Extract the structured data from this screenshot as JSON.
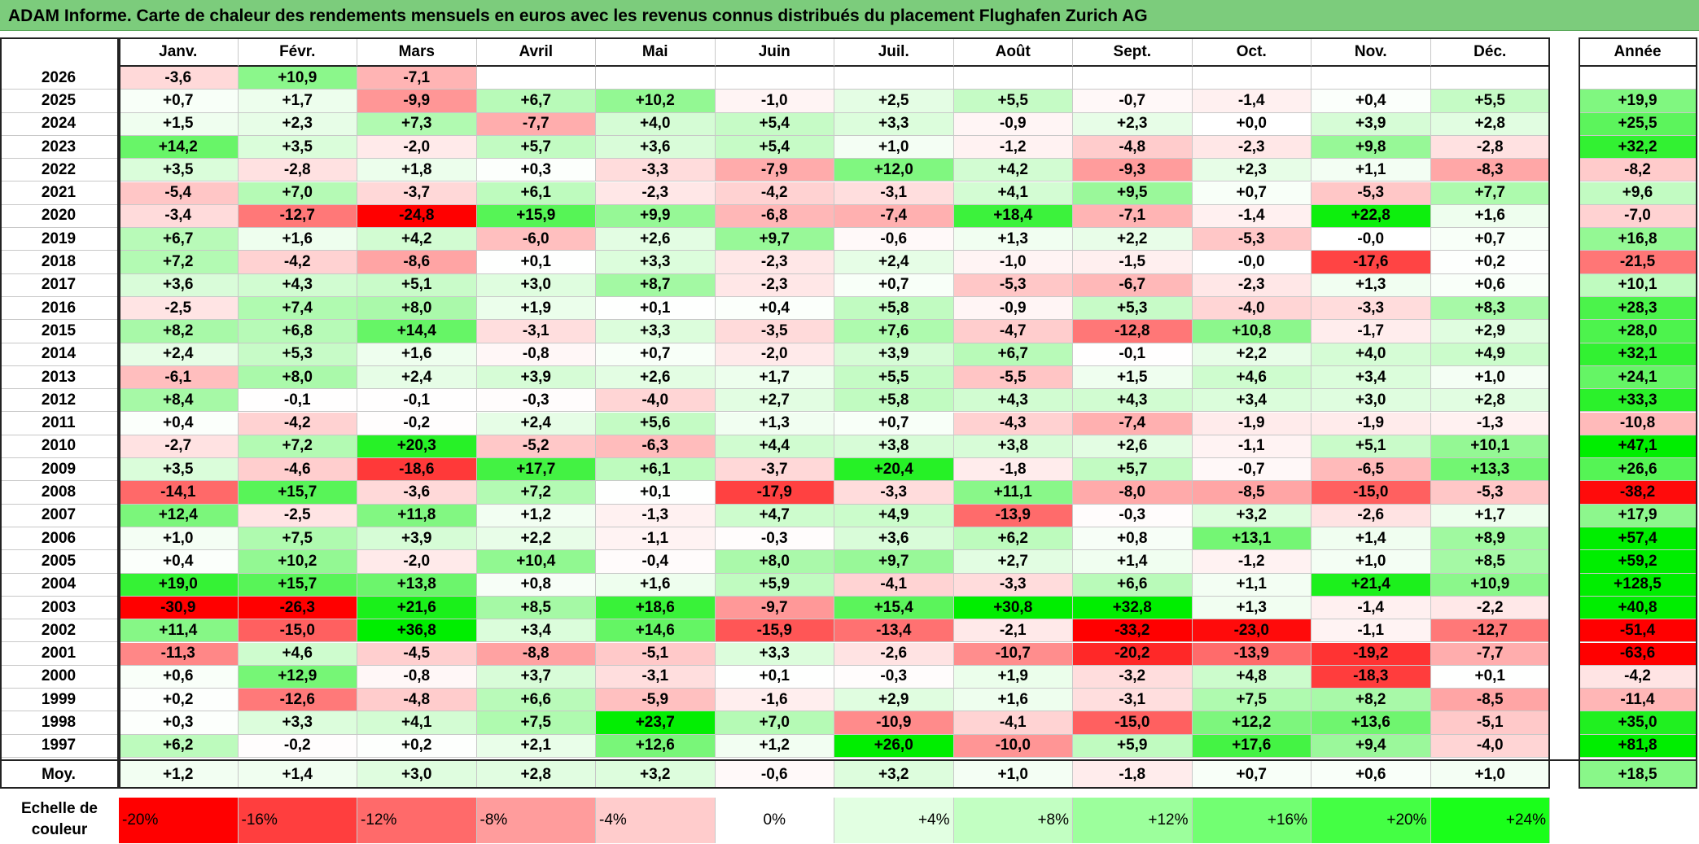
{
  "title": "ADAM Informe. Carte de chaleur des rendements mensuels en euros avec les revenus connus distribués du placement Flughafen Zurich AG",
  "chart_data": {
    "type": "heatmap",
    "title": "ADAM Informe. Carte de chaleur des rendements mensuels en euros avec les revenus connus distribués du placement Flughafen Zurich AG",
    "months": [
      "Janv.",
      "Févr.",
      "Mars",
      "Avril",
      "Mai",
      "Juin",
      "Juil.",
      "Août",
      "Sept.",
      "Oct.",
      "Nov.",
      "Déc."
    ],
    "year_header": "Année",
    "rows": [
      {
        "year": "2026",
        "values": [
          "-3,6",
          "+10,9",
          "-7,1",
          "",
          "",
          "",
          "",
          "",
          "",
          "",
          "",
          ""
        ],
        "annual": ""
      },
      {
        "year": "2025",
        "values": [
          "+0,7",
          "+1,7",
          "-9,9",
          "+6,7",
          "+10,2",
          "-1,0",
          "+2,5",
          "+5,5",
          "-0,7",
          "-1,4",
          "+0,4",
          "+5,5"
        ],
        "annual": "+19,9"
      },
      {
        "year": "2024",
        "values": [
          "+1,5",
          "+2,3",
          "+7,3",
          "-7,7",
          "+4,0",
          "+5,4",
          "+3,3",
          "-0,9",
          "+2,3",
          "+0,0",
          "+3,9",
          "+2,8"
        ],
        "annual": "+25,5"
      },
      {
        "year": "2023",
        "values": [
          "+14,2",
          "+3,5",
          "-2,0",
          "+5,7",
          "+3,6",
          "+5,4",
          "+1,0",
          "-1,2",
          "-4,8",
          "-2,3",
          "+9,8",
          "-2,8"
        ],
        "annual": "+32,2"
      },
      {
        "year": "2022",
        "values": [
          "+3,5",
          "-2,8",
          "+1,8",
          "+0,3",
          "-3,3",
          "-7,9",
          "+12,0",
          "+4,2",
          "-9,3",
          "+2,3",
          "+1,1",
          "-8,3"
        ],
        "annual": "-8,2"
      },
      {
        "year": "2021",
        "values": [
          "-5,4",
          "+7,0",
          "-3,7",
          "+6,1",
          "-2,3",
          "-4,2",
          "-3,1",
          "+4,1",
          "+9,5",
          "+0,7",
          "-5,3",
          "+7,7"
        ],
        "annual": "+9,6"
      },
      {
        "year": "2020",
        "values": [
          "-3,4",
          "-12,7",
          "-24,8",
          "+15,9",
          "+9,9",
          "-6,8",
          "-7,4",
          "+18,4",
          "-7,1",
          "-1,4",
          "+22,8",
          "+1,6"
        ],
        "annual": "-7,0"
      },
      {
        "year": "2019",
        "values": [
          "+6,7",
          "+1,6",
          "+4,2",
          "-6,0",
          "+2,6",
          "+9,7",
          "-0,6",
          "+1,3",
          "+2,2",
          "-5,3",
          "-0,0",
          "+0,7"
        ],
        "annual": "+16,8"
      },
      {
        "year": "2018",
        "values": [
          "+7,2",
          "-4,2",
          "-8,6",
          "+0,1",
          "+3,3",
          "-2,3",
          "+2,4",
          "-1,0",
          "-1,5",
          "-0,0",
          "-17,6",
          "+0,2"
        ],
        "annual": "-21,5"
      },
      {
        "year": "2017",
        "values": [
          "+3,6",
          "+4,3",
          "+5,1",
          "+3,0",
          "+8,7",
          "-2,3",
          "+0,7",
          "-5,3",
          "-6,7",
          "-2,3",
          "+1,3",
          "+0,6"
        ],
        "annual": "+10,1"
      },
      {
        "year": "2016",
        "values": [
          "-2,5",
          "+7,4",
          "+8,0",
          "+1,9",
          "+0,1",
          "+0,4",
          "+5,8",
          "-0,9",
          "+5,3",
          "-4,0",
          "-3,3",
          "+8,3"
        ],
        "annual": "+28,3"
      },
      {
        "year": "2015",
        "values": [
          "+8,2",
          "+6,8",
          "+14,4",
          "-3,1",
          "+3,3",
          "-3,5",
          "+7,6",
          "-4,7",
          "-12,8",
          "+10,8",
          "-1,7",
          "+2,9"
        ],
        "annual": "+28,0"
      },
      {
        "year": "2014",
        "values": [
          "+2,4",
          "+5,3",
          "+1,6",
          "-0,8",
          "+0,7",
          "-2,0",
          "+3,9",
          "+6,7",
          "-0,1",
          "+2,2",
          "+4,0",
          "+4,9"
        ],
        "annual": "+32,1"
      },
      {
        "year": "2013",
        "values": [
          "-6,1",
          "+8,0",
          "+2,4",
          "+3,9",
          "+2,6",
          "+1,7",
          "+5,5",
          "-5,5",
          "+1,5",
          "+4,6",
          "+3,4",
          "+1,0"
        ],
        "annual": "+24,1"
      },
      {
        "year": "2012",
        "values": [
          "+8,4",
          "-0,1",
          "-0,1",
          "-0,3",
          "-4,0",
          "+2,7",
          "+5,8",
          "+4,3",
          "+4,3",
          "+3,4",
          "+3,0",
          "+2,8"
        ],
        "annual": "+33,3"
      },
      {
        "year": "2011",
        "values": [
          "+0,4",
          "-4,2",
          "-0,2",
          "+2,4",
          "+5,6",
          "+1,3",
          "+0,7",
          "-4,3",
          "-7,4",
          "-1,9",
          "-1,9",
          "-1,3"
        ],
        "annual": "-10,8"
      },
      {
        "year": "2010",
        "values": [
          "-2,7",
          "+7,2",
          "+20,3",
          "-5,2",
          "-6,3",
          "+4,4",
          "+3,8",
          "+3,8",
          "+2,6",
          "-1,1",
          "+5,1",
          "+10,1"
        ],
        "annual": "+47,1"
      },
      {
        "year": "2009",
        "values": [
          "+3,5",
          "-4,6",
          "-18,6",
          "+17,7",
          "+6,1",
          "-3,7",
          "+20,4",
          "-1,8",
          "+5,7",
          "-0,7",
          "-6,5",
          "+13,3"
        ],
        "annual": "+26,6"
      },
      {
        "year": "2008",
        "values": [
          "-14,1",
          "+15,7",
          "-3,6",
          "+7,2",
          "+0,1",
          "-17,9",
          "-3,3",
          "+11,1",
          "-8,0",
          "-8,5",
          "-15,0",
          "-5,3"
        ],
        "annual": "-38,2"
      },
      {
        "year": "2007",
        "values": [
          "+12,4",
          "-2,5",
          "+11,8",
          "+1,2",
          "-1,3",
          "+4,7",
          "+4,9",
          "-13,9",
          "-0,3",
          "+3,2",
          "-2,6",
          "+1,7"
        ],
        "annual": "+17,9"
      },
      {
        "year": "2006",
        "values": [
          "+1,0",
          "+7,5",
          "+3,9",
          "+2,2",
          "-1,1",
          "-0,3",
          "+3,6",
          "+6,2",
          "+0,8",
          "+13,1",
          "+1,4",
          "+8,9"
        ],
        "annual": "+57,4"
      },
      {
        "year": "2005",
        "values": [
          "+0,4",
          "+10,2",
          "-2,0",
          "+10,4",
          "-0,4",
          "+8,0",
          "+9,7",
          "+2,7",
          "+1,4",
          "-1,2",
          "+1,0",
          "+8,5"
        ],
        "annual": "+59,2"
      },
      {
        "year": "2004",
        "values": [
          "+19,0",
          "+15,7",
          "+13,8",
          "+0,8",
          "+1,6",
          "+5,9",
          "-4,1",
          "-3,3",
          "+6,6",
          "+1,1",
          "+21,4",
          "+10,9"
        ],
        "annual": "+128,5"
      },
      {
        "year": "2003",
        "values": [
          "-30,9",
          "-26,3",
          "+21,6",
          "+8,5",
          "+18,6",
          "-9,7",
          "+15,4",
          "+30,8",
          "+32,8",
          "+1,3",
          "-1,4",
          "-2,2"
        ],
        "annual": "+40,8"
      },
      {
        "year": "2002",
        "values": [
          "+11,4",
          "-15,0",
          "+36,8",
          "+3,4",
          "+14,6",
          "-15,9",
          "-13,4",
          "-2,1",
          "-33,2",
          "-23,0",
          "-1,1",
          "-12,7"
        ],
        "annual": "-51,4"
      },
      {
        "year": "2001",
        "values": [
          "-11,3",
          "+4,6",
          "-4,5",
          "-8,8",
          "-5,1",
          "+3,3",
          "-2,6",
          "-10,7",
          "-20,2",
          "-13,9",
          "-19,2",
          "-7,7"
        ],
        "annual": "-63,6"
      },
      {
        "year": "2000",
        "values": [
          "+0,6",
          "+12,9",
          "-0,8",
          "+3,7",
          "-3,1",
          "+0,1",
          "-0,3",
          "+1,9",
          "-3,2",
          "+4,8",
          "-18,3",
          "+0,1"
        ],
        "annual": "-4,2"
      },
      {
        "year": "1999",
        "values": [
          "+0,2",
          "-12,6",
          "-4,8",
          "+6,6",
          "-5,9",
          "-1,6",
          "+2,9",
          "+1,6",
          "-3,1",
          "+7,5",
          "+8,2",
          "-8,5"
        ],
        "annual": "-11,4"
      },
      {
        "year": "1998",
        "values": [
          "+0,3",
          "+3,3",
          "+4,1",
          "+7,5",
          "+23,7",
          "+7,0",
          "-10,9",
          "-4,1",
          "-15,0",
          "+12,2",
          "+13,6",
          "-5,1"
        ],
        "annual": "+35,0"
      },
      {
        "year": "1997",
        "values": [
          "+6,2",
          "-0,2",
          "+0,2",
          "+2,1",
          "+12,6",
          "+1,2",
          "+26,0",
          "-10,0",
          "+5,9",
          "+17,6",
          "+9,4",
          "-4,0"
        ],
        "annual": "+81,8"
      }
    ],
    "average": {
      "label": "Moy.",
      "values": [
        "+1,2",
        "+1,4",
        "+3,0",
        "+2,8",
        "+3,2",
        "-0,6",
        "+3,2",
        "+1,0",
        "-1,8",
        "+0,7",
        "+0,6",
        "+1,0"
      ],
      "annual": "+18,5"
    },
    "scale": {
      "label_line1": "Echelle de",
      "label_line2": "couleur",
      "steps": [
        "-20%",
        "-16%",
        "-12%",
        "-8%",
        "-4%",
        "0%",
        "+4%",
        "+8%",
        "+12%",
        "+16%",
        "+20%",
        "+24%"
      ],
      "colors": [
        "#ff0000",
        "#ff3e3e",
        "#ff6a6a",
        "#ff9c9c",
        "#ffcccc",
        "#ffffff",
        "#e2ffe2",
        "#c2ffc2",
        "#9cff9c",
        "#72ff72",
        "#44ff44",
        "#1aff1a"
      ]
    },
    "colors": {
      "negative_max": "#ff0000",
      "positive_max": "#00ee00",
      "neutral": "#ffffff",
      "title_bg": "#7ccc7c"
    }
  }
}
